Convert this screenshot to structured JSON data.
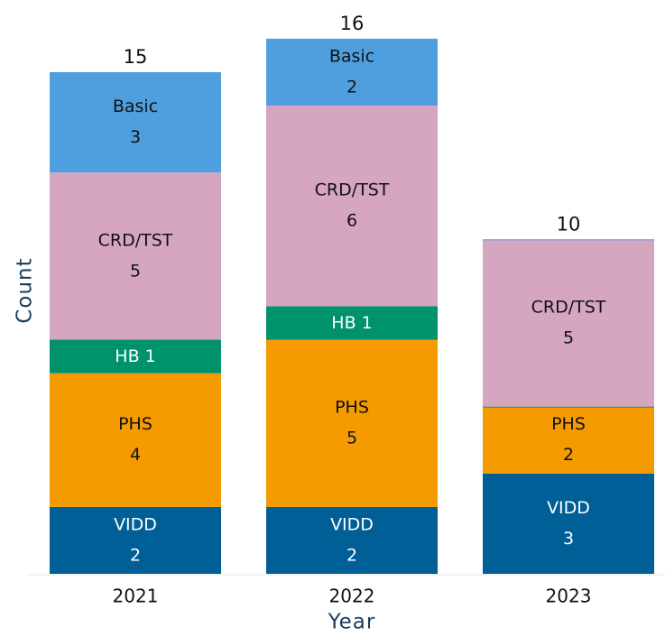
{
  "chart_data": {
    "type": "stacked_bar",
    "x_label": "Year",
    "y_label": "Count",
    "categories": [
      "2021",
      "2022",
      "2023"
    ],
    "series": [
      {
        "name": "VIDD",
        "color": "#005f96",
        "values": [
          2,
          2,
          3
        ]
      },
      {
        "name": "PHS",
        "color": "#f59a00",
        "values": [
          4,
          5,
          2
        ]
      },
      {
        "name": "HB",
        "color": "#00936b",
        "values": [
          1,
          1,
          0
        ]
      },
      {
        "name": "CRD/TST",
        "color": "#d6a5c0",
        "values": [
          5,
          6,
          5
        ]
      },
      {
        "name": "Basic",
        "color": "#4f9fdf",
        "values": [
          3,
          2,
          0
        ]
      }
    ],
    "totals": [
      15,
      16,
      10
    ]
  }
}
